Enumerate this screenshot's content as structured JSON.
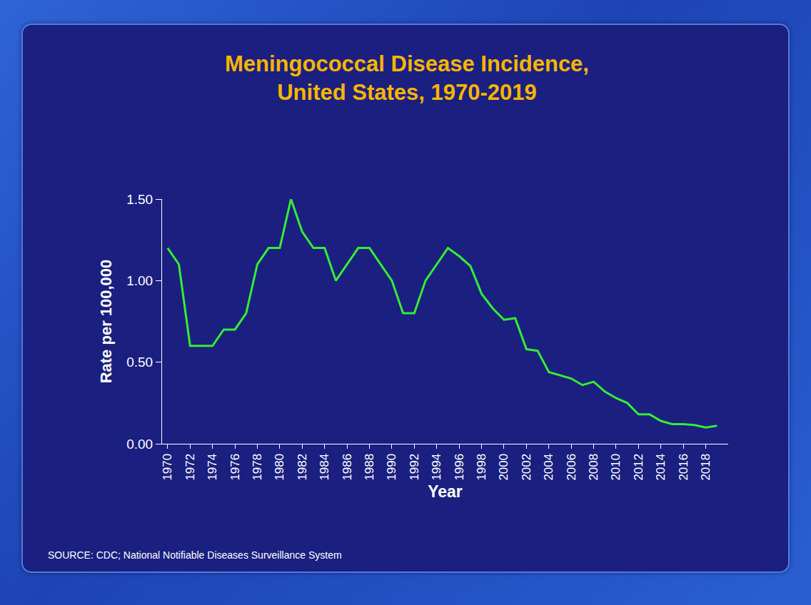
{
  "chart_data": {
    "type": "line",
    "title": "Meningococcal Disease Incidence,\nUnited States, 1970-2019",
    "x_label": "Year",
    "y_label": "Rate per 100,000",
    "source": "SOURCE: CDC; National Notifiable Diseases Surveillance System",
    "x": [
      1970,
      1971,
      1972,
      1973,
      1974,
      1975,
      1976,
      1977,
      1978,
      1979,
      1980,
      1981,
      1982,
      1983,
      1984,
      1985,
      1986,
      1987,
      1988,
      1989,
      1990,
      1991,
      1992,
      1993,
      1994,
      1995,
      1996,
      1997,
      1998,
      1999,
      2000,
      2001,
      2002,
      2003,
      2004,
      2005,
      2006,
      2007,
      2008,
      2009,
      2010,
      2011,
      2012,
      2013,
      2014,
      2015,
      2016,
      2017,
      2018,
      2019
    ],
    "values": [
      1.2,
      1.1,
      0.6,
      0.6,
      0.6,
      0.7,
      0.7,
      0.8,
      1.1,
      1.2,
      1.2,
      1.5,
      1.3,
      1.2,
      1.2,
      1.0,
      1.1,
      1.2,
      1.2,
      1.1,
      1.0,
      0.8,
      0.8,
      1.0,
      1.1,
      1.2,
      1.15,
      1.09,
      0.92,
      0.83,
      0.76,
      0.77,
      0.58,
      0.57,
      0.44,
      0.42,
      0.4,
      0.36,
      0.38,
      0.32,
      0.28,
      0.25,
      0.18,
      0.18,
      0.14,
      0.12,
      0.12,
      0.115,
      0.1,
      0.11
    ],
    "color": "#33ee33",
    "line_style": "solid",
    "marker": "none",
    "grid": false,
    "xlim": [
      1969.5,
      2020
    ],
    "xticks": [
      1970,
      1972,
      1974,
      1976,
      1978,
      1980,
      1982,
      1984,
      1986,
      1988,
      1990,
      1992,
      1994,
      1996,
      1998,
      2000,
      2002,
      2004,
      2006,
      2008,
      2010,
      2012,
      2014,
      2016,
      2018
    ],
    "ylim": [
      0,
      1.5
    ],
    "yticks": [
      {
        "value": 0,
        "label": "0.00"
      },
      {
        "value": 0.5,
        "label": "0.50"
      },
      {
        "value": 1,
        "label": "1.00"
      },
      {
        "value": 1.5,
        "label": "1.50"
      }
    ]
  }
}
